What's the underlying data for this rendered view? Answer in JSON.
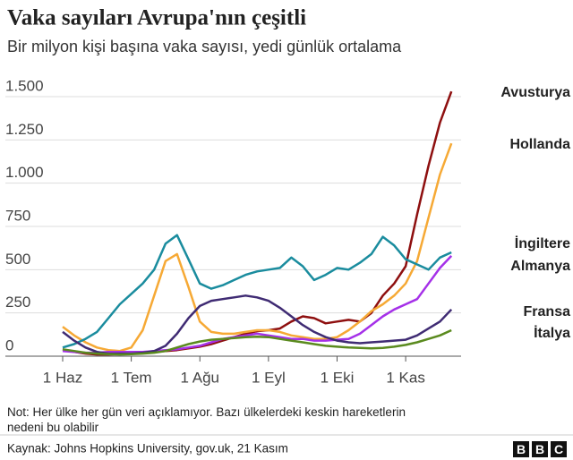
{
  "chart_data": {
    "type": "line",
    "title": "Vaka sayıları Avrupa'nın çeşitli",
    "subtitle": "Bir milyon kişi başına vaka sayısı, yedi günlük ortalama",
    "categories": [
      "1 Haz",
      null,
      null,
      null,
      null,
      null,
      "1 Tem",
      null,
      null,
      null,
      null,
      null,
      "1 Ağu",
      null,
      null,
      null,
      null,
      null,
      "1 Eyl",
      null,
      null,
      null,
      null,
      null,
      "1 Eki",
      null,
      null,
      null,
      null,
      null,
      "1 Kas",
      null,
      null,
      null,
      null
    ],
    "ylim": [
      0,
      1500
    ],
    "yticks": [
      0,
      250,
      500,
      750,
      {
        "value": 1000,
        "label": "1.000"
      },
      {
        "value": 1250,
        "label": "1.250"
      },
      {
        "value": 1500,
        "label": "1.500"
      }
    ],
    "grid": true,
    "series": [
      {
        "name": "Avusturya",
        "color": "#8e0f0f",
        "values": [
          40,
          25,
          15,
          10,
          10,
          12,
          15,
          20,
          25,
          30,
          35,
          45,
          55,
          70,
          90,
          110,
          130,
          145,
          150,
          160,
          200,
          230,
          220,
          190,
          200,
          210,
          200,
          250,
          350,
          420,
          520,
          820,
          1100,
          1350,
          1530
        ]
      },
      {
        "name": "Hollanda",
        "color": "#f6a935",
        "values": [
          170,
          120,
          80,
          50,
          35,
          30,
          50,
          150,
          350,
          550,
          590,
          400,
          200,
          140,
          130,
          130,
          140,
          150,
          150,
          140,
          120,
          110,
          100,
          100,
          110,
          150,
          200,
          260,
          300,
          350,
          420,
          550,
          800,
          1050,
          1230
        ]
      },
      {
        "name": "İngiltere",
        "color": "#1a8c9e",
        "values": [
          50,
          70,
          100,
          140,
          220,
          300,
          360,
          420,
          500,
          650,
          700,
          560,
          420,
          390,
          410,
          440,
          470,
          490,
          500,
          510,
          570,
          520,
          440,
          470,
          510,
          500,
          540,
          590,
          690,
          640,
          560,
          530,
          500,
          570,
          600
        ]
      },
      {
        "name": "Almanya",
        "color": "#a530e8",
        "values": [
          30,
          25,
          20,
          20,
          25,
          25,
          25,
          25,
          30,
          35,
          40,
          50,
          60,
          80,
          100,
          110,
          120,
          130,
          120,
          110,
          100,
          100,
          90,
          90,
          95,
          100,
          130,
          180,
          230,
          270,
          300,
          330,
          420,
          510,
          580
        ]
      },
      {
        "name": "Fransa",
        "color": "#3f2b73",
        "values": [
          140,
          90,
          50,
          25,
          15,
          15,
          15,
          20,
          30,
          60,
          130,
          220,
          290,
          320,
          330,
          340,
          350,
          340,
          320,
          280,
          230,
          180,
          140,
          110,
          90,
          80,
          75,
          80,
          85,
          90,
          95,
          120,
          160,
          200,
          270
        ]
      },
      {
        "name": "İtalya",
        "color": "#5a8a1e",
        "values": [
          40,
          30,
          20,
          15,
          12,
          10,
          12,
          15,
          20,
          30,
          50,
          70,
          85,
          95,
          100,
          105,
          110,
          112,
          110,
          100,
          90,
          80,
          70,
          60,
          55,
          50,
          48,
          45,
          48,
          55,
          65,
          80,
          100,
          120,
          150
        ]
      }
    ],
    "note": "Not: Her ülke her gün veri açıklamıyor. Bazı ülkelerdeki keskin hareketlerin nedeni bu olabilir",
    "source": "Kaynak: Johns Hopkins University, gov.uk, 21 Kasım",
    "logo": "BBC"
  }
}
